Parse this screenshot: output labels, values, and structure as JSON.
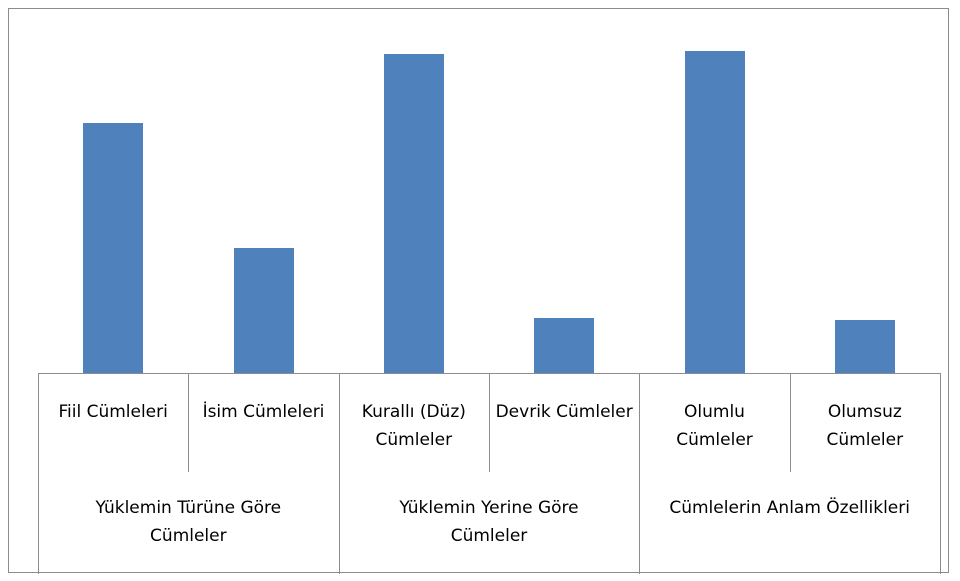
{
  "chart_data": {
    "type": "bar",
    "color": "#4f81bd",
    "ylim": [
      0,
      60
    ],
    "groups": [
      {
        "label": "Yüklemin Türüne Göre Cümleler",
        "categories": [
          "Fiil Cümleleri",
          "İsim Cümleleri"
        ],
        "values": [
          45,
          22.5
        ]
      },
      {
        "label": "Yüklemin Yerine Göre Cümleler",
        "categories": [
          "Kurallı (Düz) Cümleler",
          "Devrik Cümleler"
        ],
        "values": [
          57.5,
          10
        ]
      },
      {
        "label": "Cümlelerin Anlam Özellikleri",
        "categories": [
          "Olumlu Cümleler",
          "Olumsuz Cümleler"
        ],
        "values": [
          58,
          9.5
        ]
      }
    ]
  }
}
